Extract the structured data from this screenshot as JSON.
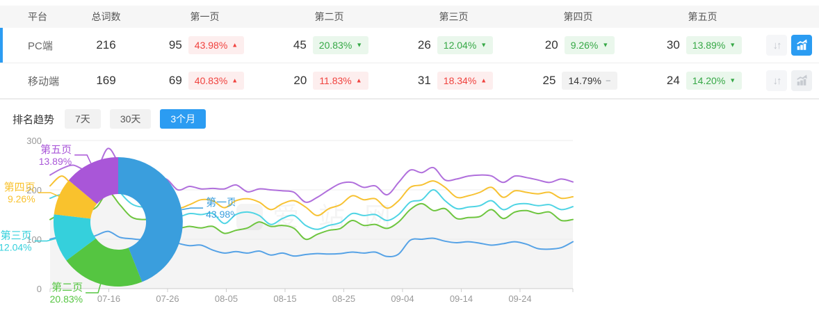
{
  "colors": {
    "accent": "#2b9cf2",
    "up_red": "#f0423e",
    "up_red_bg": "#fdeeee",
    "down_green": "#35a845",
    "down_green_bg": "#eaf7ec",
    "neutral_bg": "#f2f2f2"
  },
  "table": {
    "columns": [
      "平台",
      "总词数",
      "第一页",
      "第二页",
      "第三页",
      "第四页",
      "第五页"
    ],
    "rows": [
      {
        "platform": "PC端",
        "total": "216",
        "selected": true,
        "trend_active": true,
        "pages": [
          {
            "count": "95",
            "pct": "43.98%",
            "dir": "up",
            "tone": "red"
          },
          {
            "count": "45",
            "pct": "20.83%",
            "dir": "down",
            "tone": "green"
          },
          {
            "count": "26",
            "pct": "12.04%",
            "dir": "down",
            "tone": "green"
          },
          {
            "count": "20",
            "pct": "9.26%",
            "dir": "down",
            "tone": "green"
          },
          {
            "count": "30",
            "pct": "13.89%",
            "dir": "down",
            "tone": "green"
          }
        ]
      },
      {
        "platform": "移动端",
        "total": "169",
        "selected": false,
        "trend_active": false,
        "pages": [
          {
            "count": "69",
            "pct": "40.83%",
            "dir": "up",
            "tone": "red"
          },
          {
            "count": "20",
            "pct": "11.83%",
            "dir": "up",
            "tone": "red"
          },
          {
            "count": "31",
            "pct": "18.34%",
            "dir": "up",
            "tone": "red"
          },
          {
            "count": "25",
            "pct": "14.79%",
            "dir": "flat",
            "tone": "neutral"
          },
          {
            "count": "24",
            "pct": "14.20%",
            "dir": "down",
            "tone": "green"
          }
        ]
      }
    ]
  },
  "trend": {
    "title": "排名趋势",
    "tabs": [
      {
        "label": "7天",
        "active": false
      },
      {
        "label": "30天",
        "active": false
      },
      {
        "label": "3个月",
        "active": true
      }
    ],
    "watermark": "爱站网"
  },
  "chart_data": [
    {
      "type": "line",
      "stacked_cumulative": true,
      "ylim": [
        0,
        300
      ],
      "yticks": [
        0,
        100,
        200,
        300
      ],
      "x_domain_days": 89,
      "x_ticks": [
        {
          "label": "07-16",
          "day": 10
        },
        {
          "label": "07-26",
          "day": 20
        },
        {
          "label": "08-05",
          "day": 30
        },
        {
          "label": "08-15",
          "day": 40
        },
        {
          "label": "08-25",
          "day": 50
        },
        {
          "label": "09-04",
          "day": 60
        },
        {
          "label": "09-14",
          "day": 70
        },
        {
          "label": "09-24",
          "day": 80
        }
      ],
      "area_under_series": "第二页",
      "area_color": "#f4f4f4",
      "grid_color": "#ececec",
      "axis_color": "#cccccc",
      "tick_label_color": "#999999",
      "series": [
        {
          "name": "第一页",
          "color": "#55a2e6",
          "values": [
            100,
            105,
            101,
            100,
            108,
            116,
            104,
            101,
            99,
            101,
            100,
            92,
            87,
            88,
            78,
            72,
            75,
            72,
            76,
            68,
            72,
            66,
            69,
            71,
            70,
            71,
            74,
            72,
            74,
            65,
            70,
            98,
            100,
            102,
            96,
            93,
            95,
            92,
            88,
            91,
            95,
            90,
            81,
            80,
            83,
            95
          ]
        },
        {
          "name": "第二页",
          "color": "#6ec53f",
          "values": [
            140,
            152,
            158,
            156,
            165,
            195,
            170,
            145,
            140,
            142,
            143,
            124,
            126,
            123,
            126,
            112,
            118,
            123,
            135,
            126,
            128,
            122,
            100,
            110,
            118,
            122,
            138,
            128,
            130,
            122,
            135,
            160,
            172,
            158,
            162,
            142,
            144,
            146,
            160,
            142,
            155,
            158,
            152,
            155,
            138,
            140
          ]
        },
        {
          "name": "第三页",
          "color": "#4fd4e4",
          "values": [
            183,
            190,
            178,
            185,
            180,
            232,
            196,
            172,
            165,
            168,
            150,
            145,
            152,
            150,
            152,
            132,
            150,
            155,
            148,
            130,
            142,
            148,
            128,
            120,
            128,
            134,
            152,
            148,
            150,
            138,
            150,
            175,
            180,
            200,
            178,
            162,
            165,
            168,
            178,
            160,
            170,
            172,
            168,
            170,
            160,
            166
          ]
        },
        {
          "name": "第四页",
          "color": "#f7c233",
          "values": [
            208,
            228,
            210,
            215,
            207,
            255,
            225,
            200,
            196,
            198,
            196,
            165,
            170,
            180,
            178,
            164,
            178,
            182,
            175,
            160,
            172,
            178,
            165,
            148,
            162,
            170,
            188,
            180,
            182,
            163,
            178,
            205,
            210,
            218,
            205,
            185,
            188,
            195,
            205,
            185,
            198,
            195,
            192,
            195,
            183,
            186
          ]
        },
        {
          "name": "第五页",
          "color": "#b06fdc",
          "values": [
            230,
            243,
            250,
            240,
            241,
            284,
            250,
            225,
            218,
            220,
            222,
            200,
            207,
            202,
            203,
            202,
            210,
            196,
            202,
            200,
            198,
            195,
            175,
            185,
            200,
            213,
            215,
            205,
            208,
            190,
            215,
            240,
            235,
            245,
            220,
            222,
            228,
            230,
            228,
            215,
            228,
            225,
            220,
            215,
            222,
            216
          ]
        }
      ]
    },
    {
      "type": "pie",
      "donut": true,
      "slices": [
        {
          "label": "第一页",
          "pct_text": "43.98%",
          "value": 43.98,
          "color": "#3a9edd"
        },
        {
          "label": "第二页",
          "pct_text": "20.83%",
          "value": 20.83,
          "color": "#55c541"
        },
        {
          "label": "第三页",
          "pct_text": "12.04%",
          "value": 12.04,
          "color": "#35d0dc"
        },
        {
          "label": "第四页",
          "pct_text": "9.26%",
          "value": 9.26,
          "color": "#f9c22d"
        },
        {
          "label": "第五页",
          "pct_text": "13.89%",
          "value": 13.89,
          "color": "#a956d8"
        }
      ]
    }
  ]
}
